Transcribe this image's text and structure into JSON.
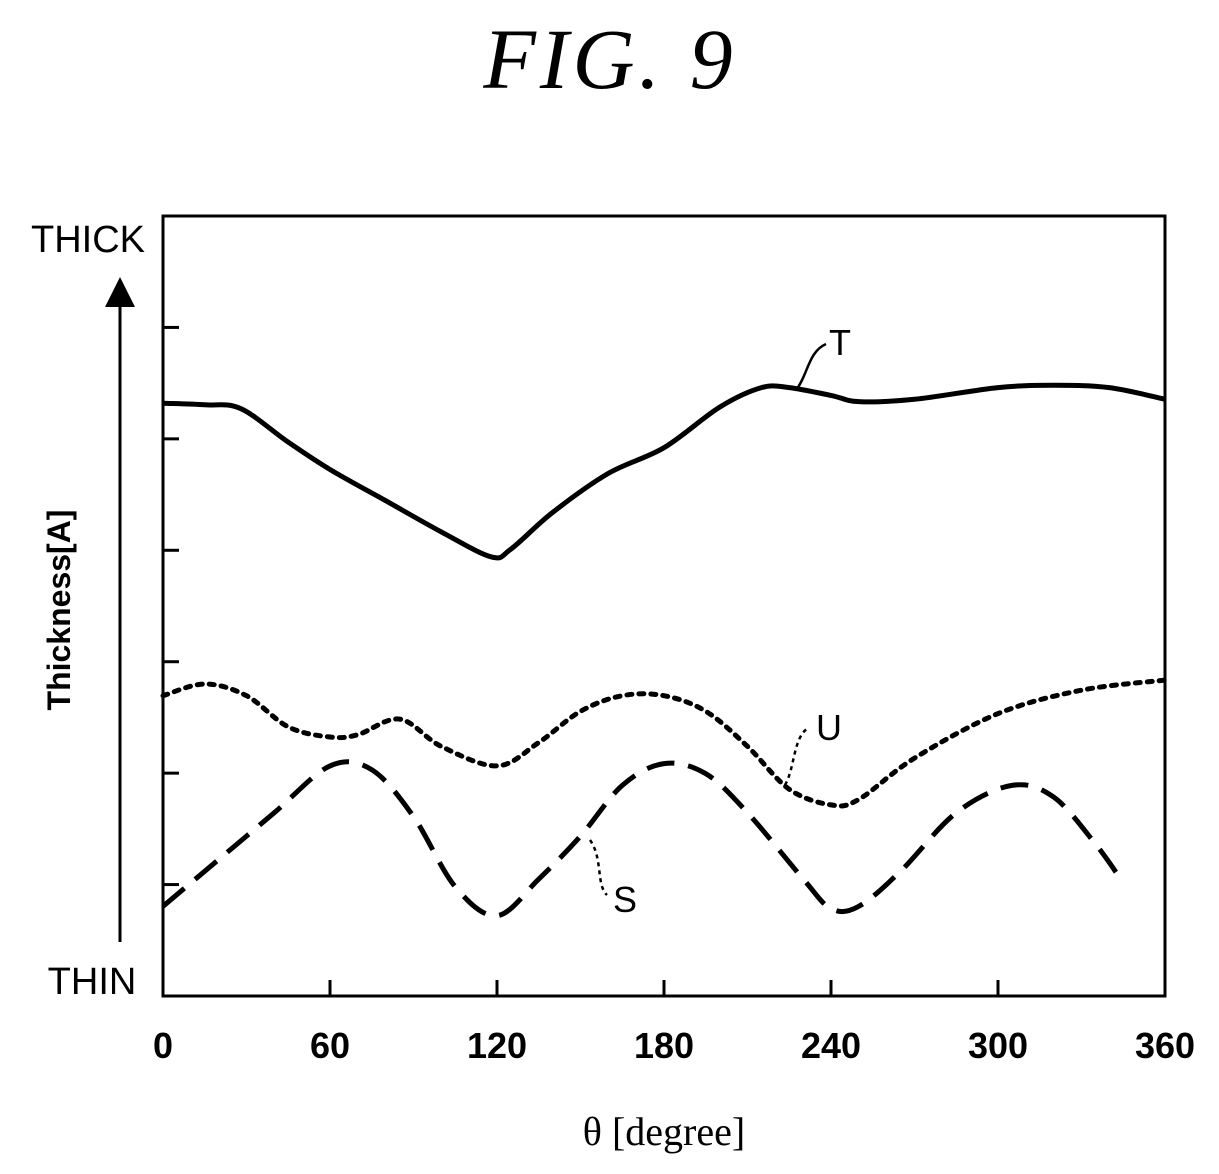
{
  "figure_title": "FIG. 9",
  "chart_data": {
    "type": "line",
    "xlabel": "θ [degree]",
    "ylabel": "Thickness[A]",
    "y_top_label": "THICK",
    "y_bottom_label": "THIN",
    "xlim": [
      0,
      360
    ],
    "ylim": [
      0,
      100
    ],
    "xticks": [
      0,
      60,
      120,
      180,
      240,
      300,
      360
    ],
    "series": [
      {
        "name": "T",
        "style": "solid",
        "x": [
          0,
          15,
          28,
          45,
          60,
          80,
          100,
          118,
          125,
          140,
          160,
          180,
          200,
          215,
          225,
          240,
          250,
          270,
          300,
          320,
          340,
          360
        ],
        "y": [
          76,
          75.8,
          75.3,
          71,
          67.5,
          63.5,
          59.5,
          56.3,
          57.3,
          62,
          67,
          70.3,
          75.5,
          78,
          78,
          77,
          76.2,
          76.5,
          78,
          78.3,
          78,
          76.5
        ]
      },
      {
        "name": "U",
        "style": "dotted",
        "x": [
          0,
          15,
          30,
          45,
          60,
          70,
          85,
          100,
          120,
          135,
          150,
          165,
          180,
          195,
          210,
          225,
          240,
          250,
          270,
          300,
          330,
          360
        ],
        "y": [
          38.5,
          40,
          38.5,
          34.5,
          33.2,
          33.5,
          35.5,
          32,
          29.5,
          32.5,
          36.5,
          38.5,
          38.5,
          36.5,
          32,
          26.5,
          24.5,
          25.2,
          30.5,
          36.2,
          39.2,
          40.5
        ]
      },
      {
        "name": "S",
        "style": "dashed",
        "x": [
          0,
          20,
          40,
          60,
          75,
          90,
          105,
          120,
          135,
          150,
          165,
          180,
          195,
          210,
          230,
          240,
          250,
          265,
          285,
          305,
          320,
          335,
          345
        ],
        "y": [
          11.5,
          17.5,
          23.5,
          29.5,
          29,
          23,
          14,
          10.3,
          15,
          20.5,
          27,
          29.8,
          28.5,
          23.5,
          15,
          11.2,
          11.5,
          16,
          23.5,
          27,
          25.5,
          19.5,
          14.5
        ]
      }
    ],
    "annotations": [
      {
        "text": "T",
        "series": "T"
      },
      {
        "text": "U",
        "series": "U"
      },
      {
        "text": "S",
        "series": "S"
      }
    ],
    "grid": false,
    "legend": "none"
  }
}
